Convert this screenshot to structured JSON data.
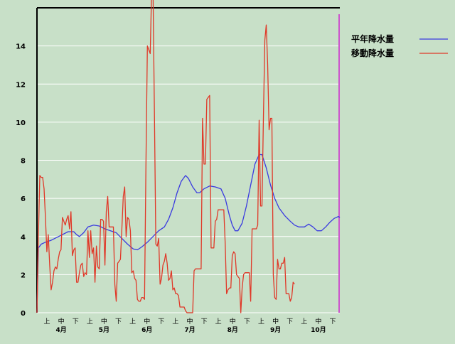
{
  "chart_data": {
    "type": "line",
    "title": "",
    "xlabel": "",
    "ylabel": "",
    "ylim": [
      0,
      16
    ],
    "grid": true,
    "legend_position": "top-right",
    "y_ticks": [
      "0",
      "2",
      "4",
      "6",
      "8",
      "10",
      "12",
      "14"
    ],
    "x_period_labels": [
      "上",
      "中",
      "下",
      "上",
      "中",
      "下",
      "上",
      "中",
      "下",
      "上",
      "中",
      "下",
      "上",
      "中",
      "下",
      "上",
      "中",
      "下",
      "上",
      "中",
      "下"
    ],
    "x_month_labels": [
      "4月",
      "5月",
      "6月",
      "7月",
      "8月",
      "9月",
      "10月"
    ],
    "x_range_days": [
      0,
      214
    ],
    "series": [
      {
        "name": "平年降水量",
        "color": "#3a3ae0",
        "points": [
          [
            0,
            0
          ],
          [
            1,
            3.4
          ],
          [
            3,
            3.6
          ],
          [
            6,
            3.7
          ],
          [
            10,
            3.8
          ],
          [
            14,
            3.95
          ],
          [
            18,
            4.1
          ],
          [
            22,
            4.25
          ],
          [
            26,
            4.25
          ],
          [
            28,
            4.1
          ],
          [
            30,
            4.0
          ],
          [
            33,
            4.2
          ],
          [
            36,
            4.5
          ],
          [
            40,
            4.6
          ],
          [
            44,
            4.55
          ],
          [
            48,
            4.4
          ],
          [
            52,
            4.3
          ],
          [
            56,
            4.2
          ],
          [
            60,
            3.9
          ],
          [
            64,
            3.6
          ],
          [
            68,
            3.35
          ],
          [
            71,
            3.3
          ],
          [
            74,
            3.45
          ],
          [
            78,
            3.7
          ],
          [
            82,
            4.0
          ],
          [
            86,
            4.3
          ],
          [
            90,
            4.5
          ],
          [
            93,
            4.9
          ],
          [
            96,
            5.5
          ],
          [
            99,
            6.3
          ],
          [
            102,
            6.9
          ],
          [
            105,
            7.2
          ],
          [
            107,
            7.05
          ],
          [
            110,
            6.6
          ],
          [
            113,
            6.3
          ],
          [
            115,
            6.3
          ],
          [
            118,
            6.5
          ],
          [
            122,
            6.65
          ],
          [
            126,
            6.6
          ],
          [
            130,
            6.5
          ],
          [
            133,
            6.0
          ],
          [
            136,
            5.1
          ],
          [
            138,
            4.6
          ],
          [
            140,
            4.3
          ],
          [
            142,
            4.3
          ],
          [
            145,
            4.7
          ],
          [
            148,
            5.6
          ],
          [
            151,
            6.7
          ],
          [
            154,
            7.8
          ],
          [
            157,
            8.3
          ],
          [
            159,
            8.3
          ],
          [
            162,
            7.6
          ],
          [
            165,
            6.7
          ],
          [
            168,
            6.0
          ],
          [
            171,
            5.5
          ],
          [
            175,
            5.1
          ],
          [
            179,
            4.8
          ],
          [
            182,
            4.6
          ],
          [
            185,
            4.5
          ],
          [
            189,
            4.5
          ],
          [
            192,
            4.65
          ],
          [
            195,
            4.5
          ],
          [
            198,
            4.3
          ],
          [
            201,
            4.3
          ],
          [
            204,
            4.5
          ],
          [
            207,
            4.75
          ],
          [
            210,
            4.95
          ],
          [
            213,
            5.05
          ],
          [
            214,
            5.0
          ]
        ]
      },
      {
        "name": "移動降水量",
        "color": "#e03828",
        "points": [
          [
            0,
            0
          ],
          [
            1,
            4.0
          ],
          [
            2,
            7.2
          ],
          [
            3,
            7.1
          ],
          [
            4,
            7.1
          ],
          [
            5,
            6.5
          ],
          [
            6,
            5.0
          ],
          [
            7,
            3.2
          ],
          [
            8,
            4.1
          ],
          [
            9,
            2.5
          ],
          [
            10,
            1.2
          ],
          [
            11,
            1.6
          ],
          [
            12,
            2.2
          ],
          [
            13,
            2.4
          ],
          [
            14,
            2.3
          ],
          [
            15,
            2.8
          ],
          [
            16,
            3.2
          ],
          [
            17,
            3.3
          ],
          [
            18,
            5.0
          ],
          [
            19,
            4.8
          ],
          [
            20,
            4.6
          ],
          [
            21,
            4.9
          ],
          [
            22,
            5.1
          ],
          [
            23,
            4.4
          ],
          [
            24,
            5.3
          ],
          [
            25,
            3.0
          ],
          [
            26,
            3.3
          ],
          [
            27,
            3.4
          ],
          [
            28,
            1.6
          ],
          [
            29,
            1.6
          ],
          [
            30,
            2.1
          ],
          [
            31,
            2.5
          ],
          [
            32,
            2.6
          ],
          [
            33,
            1.9
          ],
          [
            34,
            2.1
          ],
          [
            35,
            2.0
          ],
          [
            36,
            4.3
          ],
          [
            37,
            2.9
          ],
          [
            38,
            4.3
          ],
          [
            39,
            3.1
          ],
          [
            40,
            3.4
          ],
          [
            41,
            1.6
          ],
          [
            42,
            3.5
          ],
          [
            43,
            2.4
          ],
          [
            44,
            2.3
          ],
          [
            45,
            4.9
          ],
          [
            46,
            4.9
          ],
          [
            47,
            4.8
          ],
          [
            48,
            2.5
          ],
          [
            49,
            5.3
          ],
          [
            50,
            6.1
          ],
          [
            51,
            4.5
          ],
          [
            52,
            4.5
          ],
          [
            53,
            4.5
          ],
          [
            54,
            4.5
          ],
          [
            55,
            1.5
          ],
          [
            56,
            0.6
          ],
          [
            57,
            2.6
          ],
          [
            58,
            2.7
          ],
          [
            59,
            2.8
          ],
          [
            60,
            4.4
          ],
          [
            61,
            6.1
          ],
          [
            62,
            6.6
          ],
          [
            63,
            4.0
          ],
          [
            64,
            5.0
          ],
          [
            65,
            4.9
          ],
          [
            66,
            4.3
          ],
          [
            67,
            2.1
          ],
          [
            68,
            2.2
          ],
          [
            69,
            1.8
          ],
          [
            70,
            1.7
          ],
          [
            71,
            0.7
          ],
          [
            72,
            0.6
          ],
          [
            73,
            0.6
          ],
          [
            74,
            0.8
          ],
          [
            75,
            0.8
          ],
          [
            76,
            0.7
          ],
          [
            77,
            7.8
          ],
          [
            78,
            14.0
          ],
          [
            79,
            13.8
          ],
          [
            80,
            13.6
          ],
          [
            81,
            16.8
          ],
          [
            82,
            17.0
          ],
          [
            83,
            10.5
          ],
          [
            84,
            3.6
          ],
          [
            85,
            3.5
          ],
          [
            86,
            3.9
          ],
          [
            87,
            1.5
          ],
          [
            88,
            1.8
          ],
          [
            89,
            2.5
          ],
          [
            90,
            2.7
          ],
          [
            91,
            3.1
          ],
          [
            92,
            2.6
          ],
          [
            93,
            1.7
          ],
          [
            94,
            1.8
          ],
          [
            95,
            2.2
          ],
          [
            96,
            1.2
          ],
          [
            97,
            1.3
          ],
          [
            98,
            1.0
          ],
          [
            99,
            1.0
          ],
          [
            100,
            0.9
          ],
          [
            101,
            0.3
          ],
          [
            102,
            0.3
          ],
          [
            103,
            0.3
          ],
          [
            104,
            0.3
          ],
          [
            105,
            0.1
          ],
          [
            106,
            0.0
          ],
          [
            107,
            0.0
          ],
          [
            108,
            0.0
          ],
          [
            109,
            0.0
          ],
          [
            110,
            0.0
          ],
          [
            111,
            2.2
          ],
          [
            112,
            2.3
          ],
          [
            113,
            2.3
          ],
          [
            114,
            2.3
          ],
          [
            115,
            2.3
          ],
          [
            116,
            2.3
          ],
          [
            117,
            10.2
          ],
          [
            118,
            7.8
          ],
          [
            119,
            7.8
          ],
          [
            120,
            11.2
          ],
          [
            121,
            11.3
          ],
          [
            122,
            11.4
          ],
          [
            123,
            3.4
          ],
          [
            124,
            3.4
          ],
          [
            125,
            3.4
          ],
          [
            126,
            4.8
          ],
          [
            127,
            4.9
          ],
          [
            128,
            5.4
          ],
          [
            129,
            5.4
          ],
          [
            130,
            5.4
          ],
          [
            131,
            5.4
          ],
          [
            132,
            5.4
          ],
          [
            133,
            3.6
          ],
          [
            134,
            1.0
          ],
          [
            135,
            1.2
          ],
          [
            136,
            1.3
          ],
          [
            137,
            1.3
          ],
          [
            138,
            3.0
          ],
          [
            139,
            3.2
          ],
          [
            140,
            3.1
          ],
          [
            141,
            2.0
          ],
          [
            142,
            1.9
          ],
          [
            143,
            1.8
          ],
          [
            144,
            0.0
          ],
          [
            145,
            1.3
          ],
          [
            146,
            2.0
          ],
          [
            147,
            2.1
          ],
          [
            148,
            2.1
          ],
          [
            149,
            2.1
          ],
          [
            150,
            2.1
          ],
          [
            151,
            0.6
          ],
          [
            152,
            4.4
          ],
          [
            153,
            4.4
          ],
          [
            154,
            4.4
          ],
          [
            155,
            4.4
          ],
          [
            156,
            4.6
          ],
          [
            157,
            10.1
          ],
          [
            158,
            5.6
          ],
          [
            159,
            5.6
          ],
          [
            160,
            10.2
          ],
          [
            161,
            14.3
          ],
          [
            162,
            15.1
          ],
          [
            163,
            13.0
          ],
          [
            164,
            9.6
          ],
          [
            165,
            10.2
          ],
          [
            166,
            10.2
          ],
          [
            167,
            2.0
          ],
          [
            168,
            0.8
          ],
          [
            169,
            0.7
          ],
          [
            170,
            2.8
          ],
          [
            171,
            2.3
          ],
          [
            172,
            2.3
          ],
          [
            173,
            2.6
          ],
          [
            174,
            2.6
          ],
          [
            175,
            2.9
          ],
          [
            176,
            1.0
          ],
          [
            177,
            1.0
          ],
          [
            178,
            1.0
          ],
          [
            179,
            0.6
          ],
          [
            180,
            0.8
          ],
          [
            181,
            1.6
          ],
          [
            182,
            1.5
          ]
        ]
      }
    ]
  }
}
